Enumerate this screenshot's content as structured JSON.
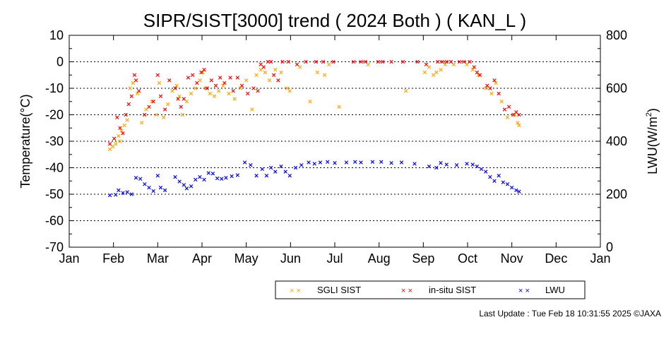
{
  "chart_data": {
    "type": "scatter",
    "title": "SIPR/SIST[3000] trend ( 2024 Both ) ( KAN_L )",
    "ylabel": "Temperature(°C)",
    "y2label_base": "LWU(W/m",
    "y2label_sup": "2",
    "y2label_end": ")",
    "ylim": [
      -70,
      10
    ],
    "y2lim": [
      0,
      800
    ],
    "yticks": [
      "10",
      "0",
      "-10",
      "-20",
      "-30",
      "-40",
      "-50",
      "-60",
      "-70"
    ],
    "y2ticks": [
      "800",
      "600",
      "400",
      "200",
      "0"
    ],
    "month_labels": [
      "Jan",
      "Feb",
      "Mar",
      "Apr",
      "May",
      "Jun",
      "Jul",
      "Aug",
      "Sep",
      "Oct",
      "Nov",
      "Dec",
      "Jan"
    ],
    "grid": "dotted horizontal",
    "legend_position": "bottom-right",
    "series": [
      {
        "name": "SGLI SIST",
        "axis": "left",
        "color": "#ffa500",
        "points": [
          [
            "2024-01-29",
            -33
          ],
          [
            "2024-01-31",
            -32
          ],
          [
            "2024-02-02",
            -31
          ],
          [
            "2024-02-04",
            -28
          ],
          [
            "2024-02-05",
            -30
          ],
          [
            "2024-02-06",
            -26
          ],
          [
            "2024-02-08",
            -24
          ],
          [
            "2024-02-10",
            -22
          ],
          [
            "2024-02-12",
            -10
          ],
          [
            "2024-02-14",
            -8
          ],
          [
            "2024-02-17",
            -12
          ],
          [
            "2024-02-20",
            -23
          ],
          [
            "2024-02-23",
            -18
          ],
          [
            "2024-02-27",
            -15
          ],
          [
            "2024-03-01",
            -20
          ],
          [
            "2024-03-03",
            -8
          ],
          [
            "2024-03-06",
            -21
          ],
          [
            "2024-03-09",
            -16
          ],
          [
            "2024-03-12",
            -11
          ],
          [
            "2024-03-15",
            -9
          ],
          [
            "2024-03-17",
            -13
          ],
          [
            "2024-03-19",
            -20
          ],
          [
            "2024-03-22",
            -15
          ],
          [
            "2024-03-25",
            -12
          ],
          [
            "2024-03-28",
            -10
          ],
          [
            "2024-03-31",
            -7
          ],
          [
            "2024-04-02",
            -4
          ],
          [
            "2024-04-04",
            -10
          ],
          [
            "2024-04-07",
            -12
          ],
          [
            "2024-04-10",
            -13
          ],
          [
            "2024-04-13",
            -11
          ],
          [
            "2024-04-16",
            -9
          ],
          [
            "2024-04-20",
            -12
          ],
          [
            "2024-04-24",
            -14
          ],
          [
            "2024-04-28",
            -10
          ],
          [
            "2024-05-02",
            -7
          ],
          [
            "2024-05-06",
            -18
          ],
          [
            "2024-05-09",
            -5
          ],
          [
            "2024-05-12",
            -3
          ],
          [
            "2024-05-15",
            -4
          ],
          [
            "2024-05-18",
            -7
          ],
          [
            "2024-05-22",
            -3
          ],
          [
            "2024-05-26",
            -4
          ],
          [
            "2024-05-30",
            -10
          ],
          [
            "2024-06-01",
            -11
          ],
          [
            "2024-06-08",
            -2
          ],
          [
            "2024-06-15",
            -15
          ],
          [
            "2024-06-20",
            -4
          ],
          [
            "2024-06-25",
            -5
          ],
          [
            "2024-06-28",
            -1
          ],
          [
            "2024-07-05",
            -17
          ],
          [
            "2024-07-25",
            -1
          ],
          [
            "2024-08-20",
            -11
          ],
          [
            "2024-09-02",
            -4
          ],
          [
            "2024-09-05",
            -2
          ],
          [
            "2024-09-08",
            -5
          ],
          [
            "2024-09-10",
            -4
          ],
          [
            "2024-09-13",
            -3
          ],
          [
            "2024-09-16",
            -1
          ],
          [
            "2024-09-22",
            -1
          ],
          [
            "2024-10-01",
            -1
          ],
          [
            "2024-10-05",
            -3
          ],
          [
            "2024-10-09",
            -5
          ],
          [
            "2024-10-14",
            -10
          ],
          [
            "2024-10-18",
            -12
          ],
          [
            "2024-10-21",
            -8
          ],
          [
            "2024-10-25",
            -15
          ],
          [
            "2024-10-29",
            -21
          ],
          [
            "2024-11-03",
            -20
          ],
          [
            "2024-11-05",
            -23
          ],
          [
            "2024-11-06",
            -24
          ]
        ]
      },
      {
        "name": "in-situ SIST",
        "axis": "left",
        "color": "#ff0000",
        "points": [
          [
            "2024-01-29",
            -31
          ],
          [
            "2024-02-01",
            -29
          ],
          [
            "2024-02-03",
            -21
          ],
          [
            "2024-02-05",
            -25
          ],
          [
            "2024-02-07",
            -27
          ],
          [
            "2024-02-09",
            -20
          ],
          [
            "2024-02-11",
            -16
          ],
          [
            "2024-02-13",
            -13
          ],
          [
            "2024-02-15",
            -5
          ],
          [
            "2024-02-16",
            -7
          ],
          [
            "2024-02-18",
            -11
          ],
          [
            "2024-02-22",
            -20
          ],
          [
            "2024-02-25",
            -17
          ],
          [
            "2024-02-28",
            -15
          ],
          [
            "2024-03-02",
            -5
          ],
          [
            "2024-03-04",
            -13
          ],
          [
            "2024-03-07",
            -18
          ],
          [
            "2024-03-10",
            -7
          ],
          [
            "2024-03-14",
            -10
          ],
          [
            "2024-03-16",
            -14
          ],
          [
            "2024-03-18",
            -17
          ],
          [
            "2024-03-20",
            -14
          ],
          [
            "2024-03-23",
            -6
          ],
          [
            "2024-03-26",
            -5
          ],
          [
            "2024-03-29",
            -8
          ],
          [
            "2024-04-01",
            -4
          ],
          [
            "2024-04-03",
            -3
          ],
          [
            "2024-04-05",
            -10
          ],
          [
            "2024-04-08",
            -7
          ],
          [
            "2024-04-11",
            -9
          ],
          [
            "2024-04-14",
            -6
          ],
          [
            "2024-04-17",
            -8
          ],
          [
            "2024-04-21",
            -6
          ],
          [
            "2024-04-23",
            -11
          ],
          [
            "2024-04-26",
            -6
          ],
          [
            "2024-04-29",
            -9
          ],
          [
            "2024-05-03",
            -12
          ],
          [
            "2024-05-07",
            -10
          ],
          [
            "2024-05-10",
            -11
          ],
          [
            "2024-05-12",
            -1
          ],
          [
            "2024-05-14",
            -2
          ],
          [
            "2024-05-17",
            0
          ],
          [
            "2024-05-19",
            0
          ],
          [
            "2024-05-21",
            -5
          ],
          [
            "2024-05-24",
            -7
          ],
          [
            "2024-05-27",
            0
          ],
          [
            "2024-05-31",
            0
          ],
          [
            "2024-06-06",
            -1
          ],
          [
            "2024-06-12",
            0
          ],
          [
            "2024-06-19",
            0
          ],
          [
            "2024-06-24",
            0
          ],
          [
            "2024-07-01",
            0
          ],
          [
            "2024-07-15",
            0
          ],
          [
            "2024-07-20",
            0
          ],
          [
            "2024-07-23",
            0
          ],
          [
            "2024-08-01",
            0
          ],
          [
            "2024-08-04",
            0
          ],
          [
            "2024-08-10",
            0
          ],
          [
            "2024-08-18",
            0
          ],
          [
            "2024-08-28",
            0
          ],
          [
            "2024-09-03",
            -1
          ],
          [
            "2024-09-11",
            0
          ],
          [
            "2024-09-14",
            0
          ],
          [
            "2024-09-17",
            0
          ],
          [
            "2024-09-20",
            0
          ],
          [
            "2024-09-26",
            0
          ],
          [
            "2024-09-29",
            0
          ],
          [
            "2024-10-03",
            0
          ],
          [
            "2024-10-06",
            -2
          ],
          [
            "2024-10-08",
            -4
          ],
          [
            "2024-10-10",
            -5
          ],
          [
            "2024-10-15",
            -9
          ],
          [
            "2024-10-17",
            -10
          ],
          [
            "2024-10-20",
            -7
          ],
          [
            "2024-10-23",
            -12
          ],
          [
            "2024-10-27",
            -18
          ],
          [
            "2024-10-30",
            -17
          ],
          [
            "2024-11-02",
            -20
          ],
          [
            "2024-11-04",
            -19
          ],
          [
            "2024-11-06",
            -20
          ]
        ]
      },
      {
        "name": "LWU",
        "axis": "right",
        "color": "#0000ff",
        "points": [
          [
            "2024-01-29",
            196
          ],
          [
            "2024-02-02",
            198
          ],
          [
            "2024-02-04",
            215
          ],
          [
            "2024-02-07",
            205
          ],
          [
            "2024-02-10",
            208
          ],
          [
            "2024-02-13",
            200
          ],
          [
            "2024-02-16",
            262
          ],
          [
            "2024-02-19",
            258
          ],
          [
            "2024-02-22",
            238
          ],
          [
            "2024-02-25",
            225
          ],
          [
            "2024-02-28",
            212
          ],
          [
            "2024-03-02",
            270
          ],
          [
            "2024-03-04",
            225
          ],
          [
            "2024-03-07",
            215
          ],
          [
            "2024-03-14",
            265
          ],
          [
            "2024-03-17",
            248
          ],
          [
            "2024-03-20",
            235
          ],
          [
            "2024-03-22",
            222
          ],
          [
            "2024-03-25",
            230
          ],
          [
            "2024-03-28",
            255
          ],
          [
            "2024-03-31",
            265
          ],
          [
            "2024-04-03",
            255
          ],
          [
            "2024-04-06",
            280
          ],
          [
            "2024-04-09",
            278
          ],
          [
            "2024-04-12",
            260
          ],
          [
            "2024-04-15",
            258
          ],
          [
            "2024-04-18",
            262
          ],
          [
            "2024-04-22",
            268
          ],
          [
            "2024-04-26",
            272
          ],
          [
            "2024-05-01",
            320
          ],
          [
            "2024-05-05",
            310
          ],
          [
            "2024-05-09",
            270
          ],
          [
            "2024-05-13",
            295
          ],
          [
            "2024-05-16",
            270
          ],
          [
            "2024-05-19",
            300
          ],
          [
            "2024-05-22",
            285
          ],
          [
            "2024-05-26",
            305
          ],
          [
            "2024-05-29",
            285
          ],
          [
            "2024-06-01",
            270
          ],
          [
            "2024-06-05",
            300
          ],
          [
            "2024-06-09",
            310
          ],
          [
            "2024-06-14",
            320
          ],
          [
            "2024-06-18",
            315
          ],
          [
            "2024-06-22",
            320
          ],
          [
            "2024-06-27",
            322
          ],
          [
            "2024-07-02",
            318
          ],
          [
            "2024-07-10",
            320
          ],
          [
            "2024-07-16",
            322
          ],
          [
            "2024-07-20",
            320
          ],
          [
            "2024-07-28",
            322
          ],
          [
            "2024-08-03",
            322
          ],
          [
            "2024-08-10",
            318
          ],
          [
            "2024-08-17",
            320
          ],
          [
            "2024-08-26",
            315
          ],
          [
            "2024-09-05",
            305
          ],
          [
            "2024-09-10",
            300
          ],
          [
            "2024-09-13",
            318
          ],
          [
            "2024-09-17",
            312
          ],
          [
            "2024-09-24",
            310
          ],
          [
            "2024-10-01",
            315
          ],
          [
            "2024-10-05",
            312
          ],
          [
            "2024-10-08",
            305
          ],
          [
            "2024-10-11",
            295
          ],
          [
            "2024-10-14",
            285
          ],
          [
            "2024-10-17",
            265
          ],
          [
            "2024-10-20",
            250
          ],
          [
            "2024-10-23",
            270
          ],
          [
            "2024-10-26",
            245
          ],
          [
            "2024-10-29",
            238
          ],
          [
            "2024-11-01",
            225
          ],
          [
            "2024-11-04",
            215
          ],
          [
            "2024-11-06",
            210
          ]
        ]
      }
    ]
  },
  "footer": {
    "last_update": "Last Update : Tue Feb 18 10:31:55 2025  ©JAXA"
  }
}
